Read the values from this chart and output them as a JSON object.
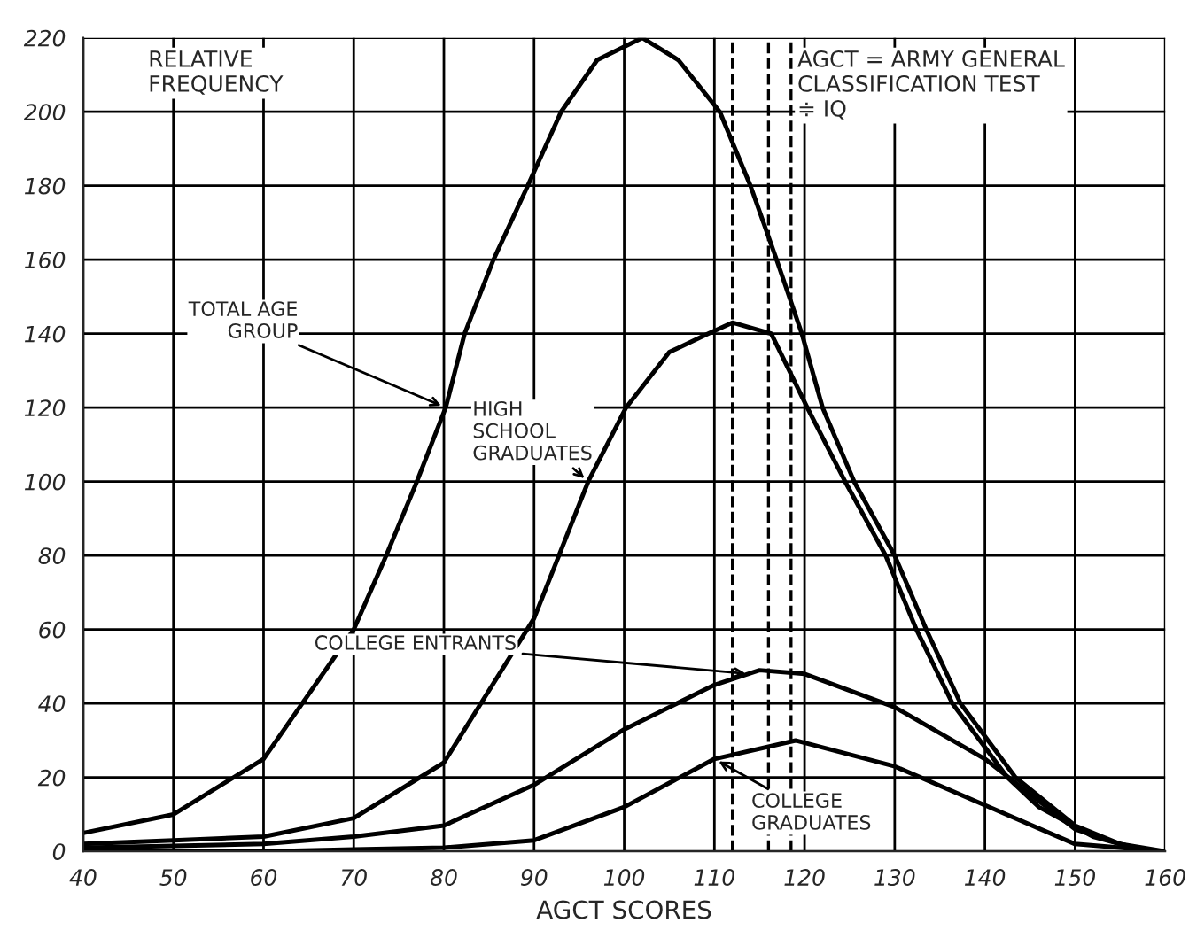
{
  "chart_data": {
    "type": "line",
    "xlabel": "AGCT SCORES",
    "ylabel": "RELATIVE FREQUENCY",
    "xlim": [
      40,
      160
    ],
    "ylim": [
      0,
      220
    ],
    "xticks": [
      40,
      50,
      60,
      70,
      80,
      90,
      100,
      110,
      120,
      130,
      140,
      150,
      160
    ],
    "yticks": [
      0,
      20,
      40,
      60,
      80,
      100,
      120,
      140,
      160,
      180,
      200,
      220
    ],
    "grid": true,
    "marker": "none",
    "line_style": "solid",
    "series": [
      {
        "color": "#000000",
        "x": [
          40,
          50,
          60,
          70,
          73.6,
          77,
          80.2,
          82.3,
          85.5,
          89.3,
          93,
          97,
          102,
          106,
          110.6,
          114,
          116.9,
          119.7,
          122,
          125.5,
          130,
          133.5,
          137.3,
          143.4,
          150,
          155,
          158
        ],
        "values": [
          5,
          10,
          25,
          60,
          80,
          100,
          120,
          140,
          160,
          180,
          200,
          214,
          220,
          214,
          200,
          180,
          160,
          140,
          120,
          100,
          80,
          60,
          40,
          20,
          7,
          2,
          0
        ]
      },
      {
        "color": "#000000",
        "x": [
          40,
          50,
          60,
          70,
          80,
          90,
          96,
          100.2,
          105,
          109.3,
          112,
          116.3,
          120.3,
          124.5,
          129,
          132.4,
          136.4,
          142.5,
          146,
          152,
          158
        ],
        "values": [
          2,
          3,
          4,
          9,
          24,
          63,
          100,
          120,
          135,
          140,
          143,
          140,
          120,
          100,
          80,
          60,
          40,
          20,
          12,
          4,
          0
        ]
      },
      {
        "color": "#000000",
        "x": [
          40,
          50,
          60,
          70,
          80,
          90,
          100,
          110,
          115,
          120,
          130,
          140,
          150,
          155,
          160
        ],
        "values": [
          1,
          1.5,
          2,
          4,
          7,
          18,
          33,
          45,
          49,
          48,
          39,
          25,
          6,
          2,
          0
        ]
      },
      {
        "color": "#000000",
        "x": [
          40,
          50,
          60,
          70,
          80,
          90,
          100,
          110,
          119,
          130,
          140,
          150,
          155,
          160
        ],
        "values": [
          0,
          0,
          0,
          0.5,
          1,
          3,
          12,
          25,
          30,
          23,
          12.5,
          2,
          1,
          0
        ]
      }
    ],
    "ref_lines": [
      {
        "axis": "x",
        "value": 112,
        "line_style": "dashed",
        "color": "#000000"
      },
      {
        "axis": "x",
        "value": 116,
        "line_style": "dashed",
        "color": "#000000"
      },
      {
        "axis": "x",
        "value": 118.5,
        "line_style": "dashed",
        "color": "#000000"
      }
    ],
    "annotations": [
      "AGCT = ARMY GENERAL\nCLASSIFICATION TEST\n≑ IQ",
      {
        "text": "TOTAL AGE\nGROUP",
        "x": 80.2,
        "y": 120
      },
      {
        "text": "HIGH\nSCHOOL\nGRADUATES",
        "x": 96,
        "y": 100
      },
      {
        "text": "COLLEGE ENTRANTS",
        "x": 114,
        "y": 48
      },
      {
        "text": "COLLEGE\nGRADUATES",
        "x": 110,
        "y": 25
      }
    ]
  }
}
